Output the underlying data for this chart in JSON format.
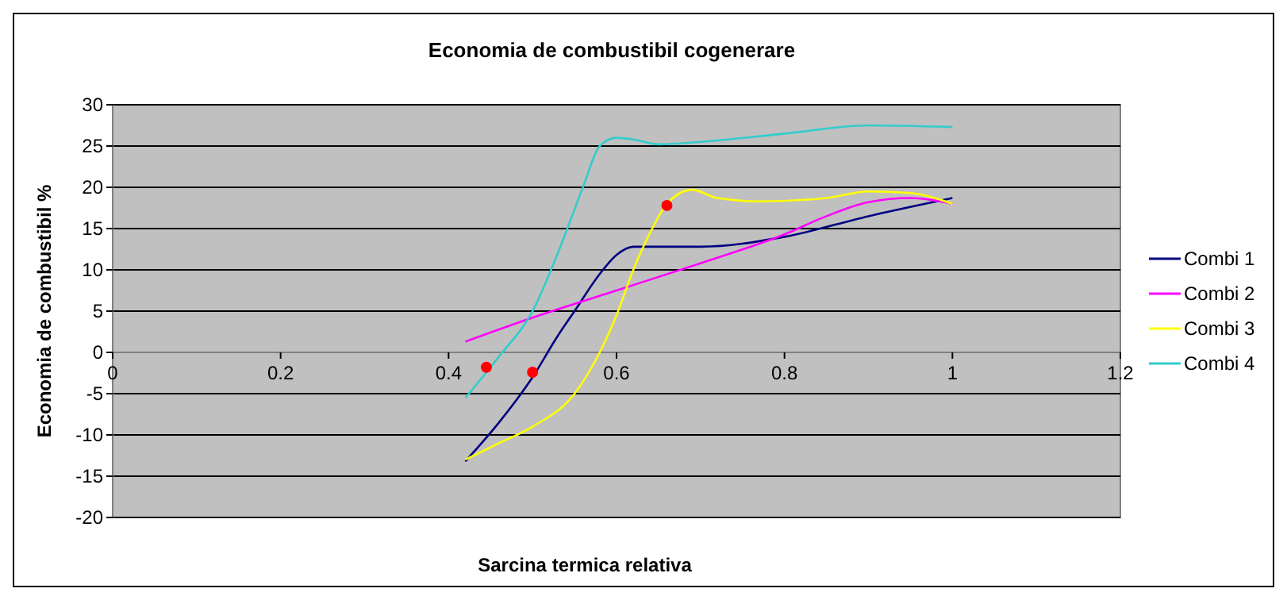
{
  "chart_data": {
    "type": "line",
    "title": "Economia de combustibil cogenerare",
    "xlabel": "Sarcina termica relativa",
    "ylabel": "Economia de combustibil %",
    "xlim": [
      0,
      1.2
    ],
    "xticks": [
      0,
      0.2,
      0.4,
      0.6,
      0.8,
      1,
      1.2
    ],
    "ylim": [
      -20,
      30
    ],
    "yticks": [
      -20,
      -15,
      -10,
      -5,
      0,
      5,
      10,
      15,
      20,
      25,
      30
    ],
    "grid": "y",
    "legend": "right",
    "marker": "none",
    "series": [
      {
        "name": "Combi 1",
        "color": "#000080",
        "x": [
          0.42,
          0.46,
          0.5,
          0.53,
          0.55,
          0.58,
          0.6,
          0.62,
          0.7,
          0.8,
          0.9,
          1.0
        ],
        "values": [
          -13.2,
          -8.5,
          -3,
          2,
          5,
          9.5,
          11.8,
          12.8,
          12.8,
          14,
          16.5,
          18.7
        ]
      },
      {
        "name": "Combi 2",
        "color": "#ff00ff",
        "x": [
          0.42,
          0.5,
          0.6,
          0.7,
          0.8,
          0.85,
          0.9,
          0.95,
          1.0
        ],
        "values": [
          1.3,
          4.2,
          7.5,
          10.8,
          14.3,
          16.5,
          18.2,
          18.7,
          18
        ]
      },
      {
        "name": "Combi 3",
        "color": "#ffff00",
        "x": [
          0.42,
          0.46,
          0.5,
          0.55,
          0.58,
          0.6,
          0.62,
          0.64,
          0.66,
          0.69,
          0.72,
          0.77,
          0.85,
          0.9,
          0.95,
          1.0
        ],
        "values": [
          -13,
          -11,
          -9,
          -5,
          0,
          4.5,
          10,
          14.5,
          18,
          19.7,
          18.7,
          18.3,
          18.7,
          19.5,
          19.3,
          18
        ]
      },
      {
        "name": "Combi 4",
        "color": "#33cccc",
        "x": [
          0.42,
          0.46,
          0.5,
          0.53,
          0.56,
          0.58,
          0.6,
          0.62,
          0.65,
          0.7,
          0.8,
          0.9,
          1.0
        ],
        "values": [
          -5.5,
          -0.5,
          5,
          12,
          20,
          25,
          26,
          25.8,
          25.2,
          25.5,
          26.5,
          27.5,
          27.3
        ]
      },
      {
        "type": "scatter",
        "color": "#ff0000",
        "marker": "circle",
        "x": [
          0.445,
          0.5,
          0.66
        ],
        "values": [
          -1.8,
          -2.4,
          17.8
        ]
      }
    ]
  }
}
